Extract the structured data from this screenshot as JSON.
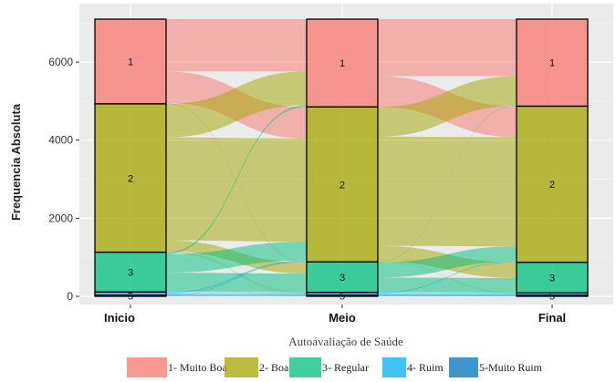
{
  "chart_data": {
    "type": "alluvial",
    "title": "",
    "xlabel": "Autoavaliação de Saúde",
    "ylabel": "Frequencia Absoluta",
    "ylim": [
      0,
      7100
    ],
    "yticks": [
      0,
      2000,
      4000,
      6000
    ],
    "grid": true,
    "legend_position": "bottom",
    "stages": [
      "Inicio",
      "Meio",
      "Final"
    ],
    "categories": [
      {
        "code": "1",
        "label": "1- Muito Boa",
        "color": "#F8766D"
      },
      {
        "code": "2",
        "label": "2- Boa",
        "color": "#A3A500"
      },
      {
        "code": "3",
        "label": "3- Regular",
        "color": "#00BF7D"
      },
      {
        "code": "4",
        "label": "4- Ruim",
        "color": "#00B0F6"
      },
      {
        "code": "5",
        "label": "5-Muito Ruim",
        "color": "#0072BD"
      }
    ],
    "values": {
      "Inicio": [
        2170,
        3800,
        1020,
        80,
        30
      ],
      "Meio": [
        2250,
        3970,
        780,
        70,
        30
      ],
      "Final": [
        2230,
        4000,
        780,
        60,
        30
      ]
    },
    "flows": [
      {
        "from_stage": "Inicio",
        "to_stage": "Meio",
        "matrix": [
          [
            1340,
            810,
            20,
            0,
            0
          ],
          [
            860,
            2640,
            280,
            15,
            5
          ],
          [
            45,
            480,
            480,
            15,
            0
          ],
          [
            5,
            30,
            0,
            40,
            5
          ],
          [
            0,
            10,
            0,
            0,
            20
          ]
        ]
      },
      {
        "from_stage": "Meio",
        "to_stage": "Final",
        "matrix": [
          [
            1460,
            790,
            0,
            0,
            0
          ],
          [
            760,
            2800,
            400,
            10,
            0
          ],
          [
            10,
            390,
            380,
            0,
            0
          ],
          [
            0,
            20,
            0,
            50,
            0
          ],
          [
            0,
            0,
            0,
            0,
            30
          ]
        ]
      }
    ]
  }
}
